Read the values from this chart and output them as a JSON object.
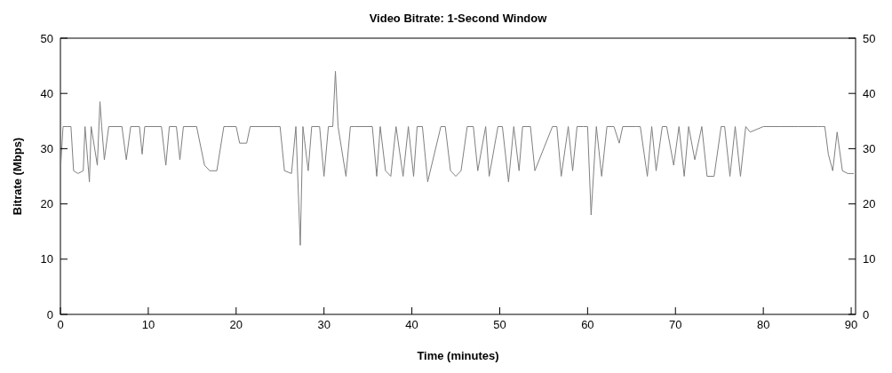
{
  "chart_data": {
    "type": "line",
    "title": "Video Bitrate: 1-Second Window",
    "xlabel": "Time (minutes)",
    "ylabel": "Bitrate (Mbps)",
    "xlim": [
      0,
      90.5
    ],
    "xticks": [
      0,
      10,
      20,
      30,
      40,
      50,
      60,
      70,
      80,
      90
    ],
    "ylim": [
      0,
      50
    ],
    "yticks": [
      0,
      10,
      20,
      30,
      40,
      50
    ],
    "y2lim": [
      0,
      50
    ],
    "y2ticks": [
      0,
      10,
      20,
      30,
      40,
      50
    ],
    "grid": false,
    "series": [
      {
        "color": "#808080",
        "x": [
          0,
          0.3,
          1.2,
          1.5,
          2.0,
          2.6,
          2.8,
          3.3,
          3.5,
          4.2,
          4.5,
          4.7,
          5.0,
          5.5,
          7.0,
          7.5,
          8.0,
          9.0,
          9.3,
          9.6,
          11.5,
          12.0,
          12.4,
          13.2,
          13.6,
          14.0,
          15.5,
          16.4,
          17.0,
          17.8,
          18.6,
          19.0,
          20.0,
          20.4,
          21.2,
          21.6,
          25.0,
          25.5,
          26.3,
          26.8,
          27.3,
          27.6,
          28.2,
          28.6,
          29.5,
          30.0,
          30.5,
          31.0,
          31.3,
          31.6,
          32.5,
          33.0,
          33.5,
          35.5,
          36.0,
          36.4,
          37.0,
          37.6,
          38.2,
          39.0,
          39.6,
          40.2,
          40.6,
          41.2,
          41.8,
          43.3,
          43.8,
          44.4,
          45.0,
          45.6,
          46.3,
          47.0,
          47.5,
          48.4,
          48.8,
          49.8,
          50.3,
          51.0,
          51.6,
          52.2,
          52.6,
          53.5,
          54.0,
          56.0,
          56.5,
          57.0,
          57.8,
          58.3,
          58.8,
          59.5,
          60.0,
          60.4,
          61.0,
          61.6,
          62.2,
          63.0,
          63.6,
          64.0,
          65.5,
          66.0,
          66.8,
          67.3,
          67.8,
          68.5,
          69.0,
          69.8,
          70.4,
          71.0,
          71.5,
          72.2,
          73.0,
          73.6,
          74.4,
          75.2,
          75.6,
          76.2,
          76.8,
          77.4,
          78.0,
          78.5,
          80.0,
          82.0,
          84.0,
          86.2,
          86.6,
          87.0,
          87.4,
          87.9,
          88.4,
          89.0,
          89.6,
          90.3
        ],
        "values": [
          26,
          34,
          34,
          26,
          25.5,
          26,
          34,
          24,
          34,
          27,
          38.5,
          34,
          28,
          34,
          34,
          28,
          34,
          34,
          29,
          34,
          34,
          27,
          34,
          34,
          28,
          34,
          34,
          27,
          26,
          26,
          34,
          34,
          34,
          31,
          31,
          34,
          34,
          26,
          25.5,
          34,
          12.5,
          34,
          26,
          34,
          34,
          25,
          34,
          34,
          44,
          34,
          25,
          34,
          34,
          34,
          25,
          34,
          26,
          25,
          34,
          25,
          34,
          25,
          34,
          34,
          24,
          34,
          34,
          26,
          25,
          26,
          34,
          34,
          26,
          34,
          25,
          34,
          34,
          24,
          34,
          26,
          34,
          34,
          26,
          34,
          34,
          25,
          34,
          26,
          34,
          34,
          34,
          18,
          34,
          25,
          34,
          34,
          31,
          34,
          34,
          34,
          25,
          34,
          26,
          34,
          34,
          27,
          34,
          25,
          34,
          28,
          34,
          25,
          25,
          34,
          34,
          25,
          34,
          25,
          34,
          33,
          34,
          34,
          34,
          34,
          34,
          34,
          29,
          26,
          33,
          26,
          25.5,
          25.5
        ]
      }
    ]
  }
}
